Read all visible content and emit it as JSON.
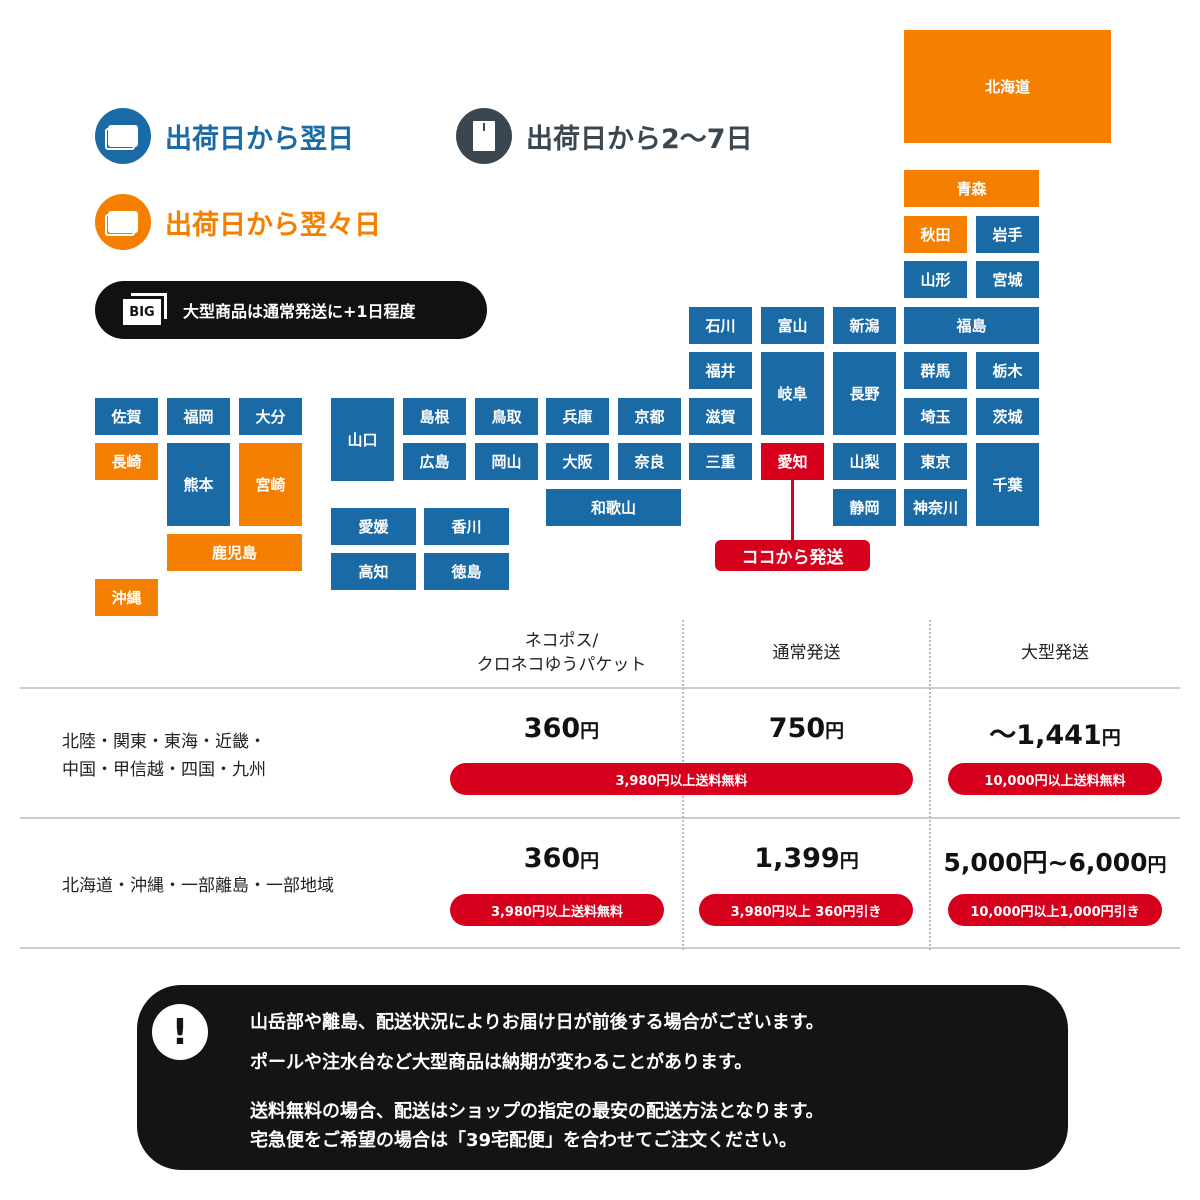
{
  "legend": {
    "next_day": "出荷日から翌日",
    "two_days": "出荷日から翌々日",
    "two_to_seven": "出荷日から2〜7日",
    "big_badge": "BIG",
    "big_note": "大型商品は通常発送に+1日程度"
  },
  "colors": {
    "next_day": "#1a6aa6",
    "two_days": "#f57f00",
    "origin": "#d7001c",
    "mail": "#3a4650"
  },
  "prefectures": {
    "hokkaido": "北海道",
    "aomori": "青森",
    "akita": "秋田",
    "iwate": "岩手",
    "yamagata": "山形",
    "miyagi": "宮城",
    "fukushima": "福島",
    "gunma": "群馬",
    "tochigi": "栃木",
    "saitama": "埼玉",
    "ibaraki": "茨城",
    "tokyo": "東京",
    "chiba": "千葉",
    "kanagawa": "神奈川",
    "niigata": "新潟",
    "nagano": "長野",
    "yamanashi": "山梨",
    "shizuoka": "静岡",
    "toyama": "富山",
    "gifu": "岐阜",
    "aichi": "愛知",
    "ishikawa": "石川",
    "fukui": "福井",
    "shiga": "滋賀",
    "mie": "三重",
    "kyoto": "京都",
    "nara": "奈良",
    "hyogo": "兵庫",
    "osaka": "大阪",
    "wakayama": "和歌山",
    "tottori": "鳥取",
    "okayama": "岡山",
    "shimane": "島根",
    "hiroshima": "広島",
    "yamaguchi": "山口",
    "ehime": "愛媛",
    "kagawa": "香川",
    "kochi": "高知",
    "tokushima": "徳島",
    "saga": "佐賀",
    "fukuoka": "福岡",
    "oita": "大分",
    "nagasaki": "長崎",
    "kumamoto": "熊本",
    "miyazaki": "宮崎",
    "kagoshima": "鹿児島",
    "okinawa": "沖縄"
  },
  "origin_label": "ココから発送",
  "table": {
    "headers": [
      "ネコポス/\nクロネコゆうパケット",
      "通常発送",
      "大型発送"
    ],
    "rows": [
      {
        "label": "北陸・関東・東海・近畿・\n中国・甲信越・四国・九州",
        "prices": [
          {
            "num": "360",
            "unit": "円"
          },
          {
            "num": "750",
            "unit": "円"
          },
          {
            "num": "〜1,441",
            "unit": "円"
          }
        ],
        "badges": [
          "3,980円以上送料無料",
          "10,000円以上送料無料"
        ]
      },
      {
        "label": "北海道・沖縄・一部離島・一部地域",
        "prices": [
          {
            "num": "360",
            "unit": "円"
          },
          {
            "num": "1,399",
            "unit": "円"
          },
          {
            "num": "5,000円~6,000",
            "unit": "円"
          }
        ],
        "badges": [
          "3,980円以上送料無料",
          "3,980円以上 360円引き",
          "10,000円以上1,000円引き"
        ]
      }
    ]
  },
  "notice": {
    "icon": "!",
    "lines": [
      "山岳部や離島、配送状況によりお届け日が前後する場合がございます。",
      "ポールや注水台など大型商品は納期が変わることがあります。",
      "送料無料の場合、配送はショップの指定の最安の配送方法となります。",
      "宅急便をご希望の場合は「39宅配便」を合わせてご注文ください。"
    ]
  }
}
